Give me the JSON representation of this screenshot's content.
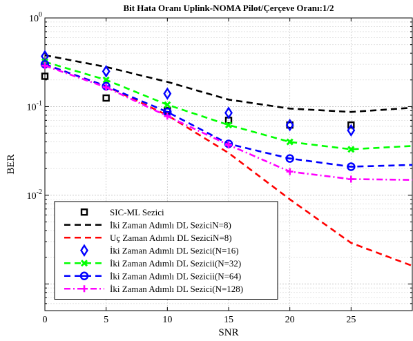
{
  "chart_data": {
    "type": "line",
    "title": "Bit Hata Oranı Uplink-NOMA Pilot/Çerçeve Oranı:1/2",
    "xlabel": "SNR",
    "ylabel": "BER",
    "xlim": [
      0,
      30
    ],
    "ylim": [
      0.0005,
      1
    ],
    "yscale": "log",
    "grid": true,
    "legend_position": "bottom-left",
    "x_ticks": [
      0,
      5,
      10,
      15,
      20,
      25
    ],
    "y_ticks": [
      {
        "value": 1,
        "base": "10",
        "exp": "0"
      },
      {
        "value": 0.1,
        "base": "10",
        "exp": "-1"
      },
      {
        "value": 0.01,
        "base": "10",
        "exp": "-2"
      }
    ],
    "series": [
      {
        "name": "SIC-ML Sezici",
        "color": "#000000",
        "line": "none",
        "marker": "square",
        "x": [
          0,
          5,
          10,
          15,
          20,
          25
        ],
        "y": [
          0.22,
          0.125,
          0.09,
          0.07,
          0.062,
          0.062
        ]
      },
      {
        "name": "İki Zaman Adımlı DL SeziciN=8)",
        "color": "#000000",
        "line": "dashed",
        "marker": "none",
        "x": [
          0,
          5,
          10,
          15,
          20,
          25,
          30
        ],
        "y": [
          0.38,
          0.28,
          0.19,
          0.12,
          0.095,
          0.087,
          0.097
        ]
      },
      {
        "name": "Uç  Zaman Adımlı DL SeziciN=8)",
        "color": "#ff0000",
        "line": "dashed",
        "marker": "none",
        "x": [
          0,
          5,
          10,
          15,
          20,
          25,
          30
        ],
        "y": [
          0.3,
          0.17,
          0.08,
          0.03,
          0.009,
          0.0029,
          0.0016
        ]
      },
      {
        "name": "İki Zaman Adımlı DL Sezici(N=16)",
        "color": "#0000ff",
        "line": "none",
        "marker": "diamond",
        "x": [
          0,
          5,
          10,
          15,
          20,
          25
        ],
        "y": [
          0.37,
          0.25,
          0.14,
          0.085,
          0.062,
          0.054
        ]
      },
      {
        "name": "İki Zaman Adımlı DL Sezicii(N=32)",
        "color": "#00ff00",
        "line": "dashed",
        "marker": "x",
        "x": [
          0,
          5,
          10,
          15,
          20,
          25,
          30
        ],
        "y": [
          0.32,
          0.2,
          0.105,
          0.062,
          0.04,
          0.033,
          0.036
        ]
      },
      {
        "name": "İki Zaman Adımlı DL Sezicii(N=64)",
        "color": "#0000ff",
        "line": "dashed",
        "marker": "circle-line",
        "x": [
          0,
          5,
          10,
          15,
          20,
          25,
          30
        ],
        "y": [
          0.3,
          0.17,
          0.087,
          0.038,
          0.026,
          0.021,
          0.022
        ]
      },
      {
        "name": "İki Zaman Adımlı DL Sezici(N=128)",
        "color": "#ff00ff",
        "line": "dashdot",
        "marker": "plus",
        "x": [
          0,
          5,
          10,
          15,
          20,
          25,
          30
        ],
        "y": [
          0.29,
          0.165,
          0.078,
          0.037,
          0.0185,
          0.0152,
          0.0149
        ]
      }
    ]
  }
}
